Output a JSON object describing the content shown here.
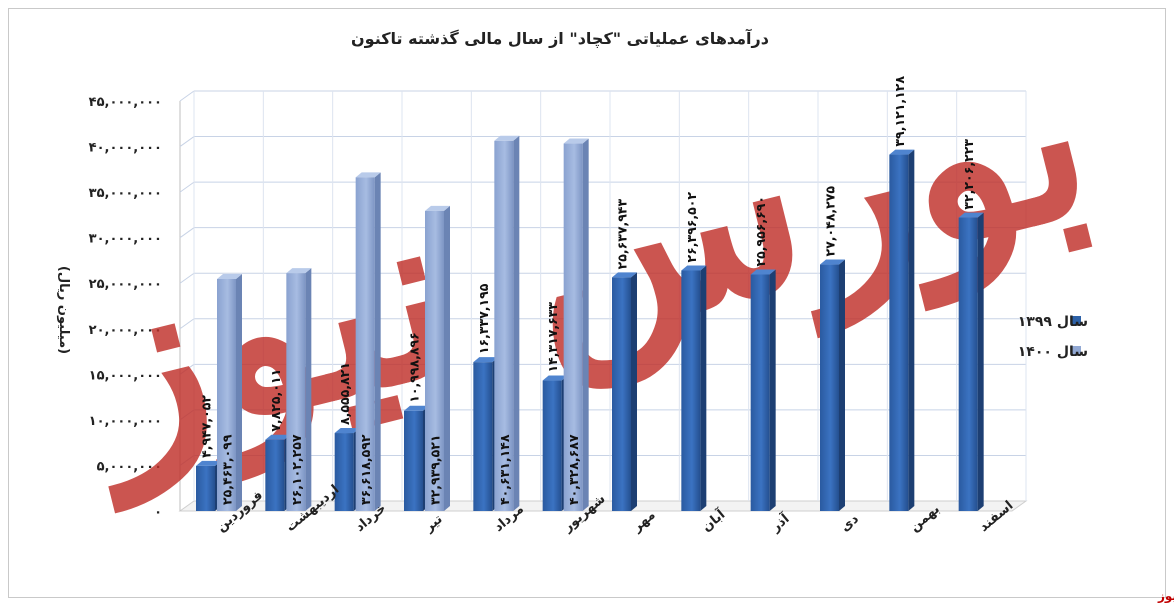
{
  "chart_data": {
    "type": "bar",
    "title": "درآمدهای عملیاتی \"کچاد\" از سال مالی گذشته تاکنون",
    "ylabel": "(میلیون ریال)",
    "ylim": [
      0,
      45000000
    ],
    "yticks": [
      0,
      5000000,
      10000000,
      15000000,
      20000000,
      25000000,
      30000000,
      35000000,
      40000000,
      45000000
    ],
    "ytick_labels": [
      "۰",
      "۵,۰۰۰,۰۰۰",
      "۱۰,۰۰۰,۰۰۰",
      "۱۵,۰۰۰,۰۰۰",
      "۲۰,۰۰۰,۰۰۰",
      "۲۵,۰۰۰,۰۰۰",
      "۳۰,۰۰۰,۰۰۰",
      "۳۵,۰۰۰,۰۰۰",
      "۴۰,۰۰۰,۰۰۰",
      "۴۵,۰۰۰,۰۰۰"
    ],
    "grid": true,
    "legend_position": "right",
    "categories": [
      "فروردین",
      "اردیبهشت",
      "خرداد",
      "تیر",
      "مرداد",
      "شهریور",
      "مهر",
      "آبان",
      "آذر",
      "دی",
      "بهمن",
      "اسفند"
    ],
    "series": [
      {
        "name": "سال ۱۳۹۹",
        "color": "#2e62a8",
        "values": [
          4947052,
          7825011,
          8555821,
          10998896,
          16337195,
          14317633,
          25637943,
          26396502,
          25956690,
          27048275,
          39121128,
          32206223
        ],
        "labels": [
          "۴,۹۴۷,۰۵۲",
          "۷,۸۲۵,۰۱۱",
          "۸,۵۵۵,۸۲۱",
          "۱۰,۹۹۸,۸۹۶",
          "۱۶,۳۳۷,۱۹۵",
          "۱۴,۳۱۷,۶۳۳",
          "۲۵,۶۳۷,۹۴۳",
          "۲۶,۳۹۶,۵۰۲",
          "۲۵,۹۵۶,۶۹۰",
          "۲۷,۰۴۸,۲۷۵",
          "۳۹,۱۲۱,۱۲۸",
          "۳۲,۲۰۶,۲۲۳"
        ]
      },
      {
        "name": "سال ۱۴۰۰",
        "color": "#92a9d4",
        "values": [
          25463099,
          26102257,
          36618592,
          32939521,
          40631148,
          40328687,
          null,
          null,
          null,
          null,
          null,
          null
        ],
        "labels": [
          "۲۵,۴۶۳,۰۹۹",
          "۲۶,۱۰۲,۲۵۷",
          "۳۶,۶۱۸,۵۹۲",
          "۳۲,۹۳۹,۵۲۱",
          "۴۰,۶۳۱,۱۴۸",
          "۴۰,۳۲۸,۶۸۷",
          "",
          "",
          "",
          "",
          "",
          ""
        ]
      }
    ]
  },
  "watermark": "بورس نیوز",
  "source": "بورس نیوز"
}
